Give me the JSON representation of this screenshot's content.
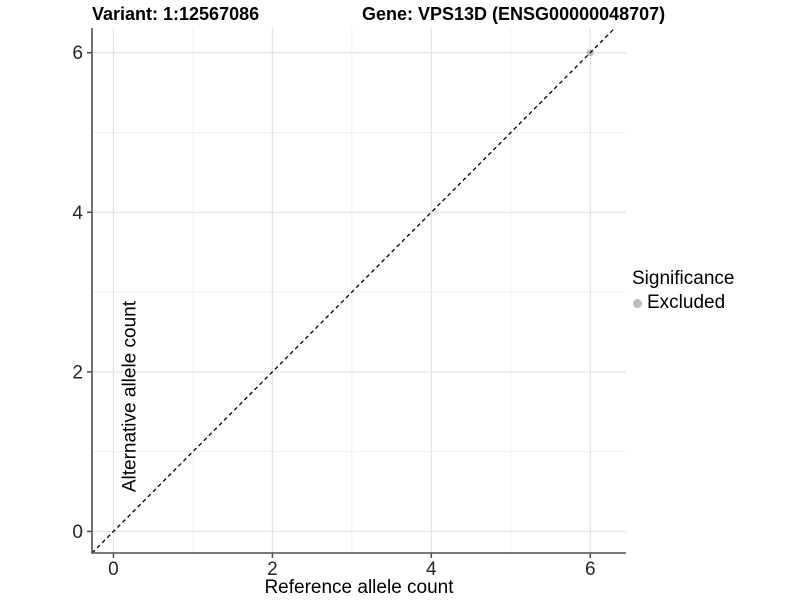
{
  "chart_data": {
    "type": "scatter",
    "titles": {
      "left": "Variant: 1:12567086",
      "right": "Gene: VPS13D (ENSG00000048707)"
    },
    "xlabel": "Reference allele count",
    "ylabel": "Alternative allele count",
    "x_ticks": [
      0,
      2,
      4,
      6
    ],
    "y_ticks": [
      0,
      2,
      4,
      6
    ],
    "x_minor": [
      1,
      3,
      5
    ],
    "y_minor": [
      1,
      3,
      5
    ],
    "xlim": [
      -0.27,
      6.45
    ],
    "ylim": [
      -0.27,
      6.31
    ],
    "grid": "major+minor",
    "legend": {
      "title": "Significance",
      "position": "right",
      "items": [
        {
          "label": "Excluded",
          "color": "#bcbcbc"
        }
      ]
    },
    "series": [
      {
        "name": "Excluded",
        "color": "#bcbcbc",
        "points": [
          [
            6,
            6
          ]
        ]
      }
    ],
    "reference_line": {
      "type": "identity",
      "slope": 1,
      "intercept": 0,
      "style": "dashed",
      "color": "#000000"
    }
  },
  "colors": {
    "background": "#ffffff",
    "grid_major": "#e3e3e3",
    "grid_minor": "#f1f1f1",
    "axis": "#4d4d4d",
    "tick_text": "#262626"
  }
}
